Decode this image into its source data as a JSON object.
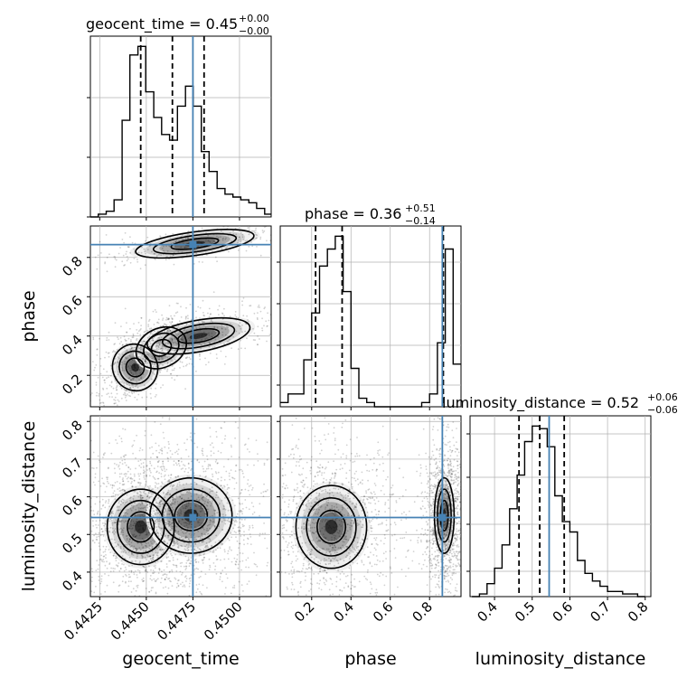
{
  "chart_data": {
    "type": "corner",
    "parameters": [
      "geocent_time",
      "phase",
      "luminosity_distance"
    ],
    "titles": [
      {
        "param": "geocent_time",
        "prefix": "geocent_time = ",
        "median": "0.45",
        "plus": "+0.00",
        "minus": "−0.00"
      },
      {
        "param": "phase",
        "prefix": "phase = ",
        "median": "0.36",
        "plus": "+0.51",
        "minus": "−0.14"
      },
      {
        "param": "luminosity_distance",
        "prefix": "luminosity_distance = ",
        "median": "0.52",
        "plus": "+0.06",
        "minus": "−0.06"
      }
    ],
    "truths": {
      "geocent_time": 0.4475,
      "phase": 0.865,
      "luminosity_distance": 0.545
    },
    "ranges": {
      "geocent_time": [
        0.442,
        0.4517
      ],
      "phase": [
        0.04,
        0.96
      ],
      "luminosity_distance": [
        0.335,
        0.815
      ]
    },
    "quantiles": {
      "geocent_time": [
        0.4447,
        0.4464,
        0.4481
      ],
      "phase": [
        0.22,
        0.355,
        0.87
      ],
      "luminosity_distance": [
        0.465,
        0.52,
        0.585
      ]
    },
    "ticks": {
      "geocent_time": {
        "values": [
          0.4425,
          0.445,
          0.4475,
          0.45
        ],
        "labels": [
          "0.4425",
          "0.4450",
          "0.4475",
          "0.4500"
        ]
      },
      "phase_x": {
        "values": [
          0.2,
          0.4,
          0.6,
          0.8
        ],
        "labels": [
          "0.2",
          "0.4",
          "0.6",
          "0.8"
        ]
      },
      "phase_y": {
        "values": [
          0.2,
          0.4,
          0.6,
          0.8
        ],
        "labels": [
          "0.2",
          "0.4",
          "0.6",
          "0.8"
        ]
      },
      "luminosity_distance_x": {
        "values": [
          0.4,
          0.5,
          0.6,
          0.7,
          0.8
        ],
        "labels": [
          "0.4",
          "0.5",
          "0.6",
          "0.7",
          "0.8"
        ]
      },
      "luminosity_distance_y": {
        "values": [
          0.4,
          0.5,
          0.6,
          0.7,
          0.8
        ],
        "labels": [
          "0.4",
          "0.5",
          "0.6",
          "0.7",
          "0.8"
        ]
      }
    },
    "histograms": {
      "geocent_time": {
        "bin_edges": [
          0.442,
          0.44242,
          0.44285,
          0.44327,
          0.4437,
          0.44412,
          0.44455,
          0.44497,
          0.4454,
          0.44582,
          0.44625,
          0.44667,
          0.4471,
          0.44752,
          0.44795,
          0.44837,
          0.4488,
          0.44922,
          0.44965,
          0.45007,
          0.4505,
          0.45092,
          0.45135,
          0.4517
        ],
        "counts": [
          0,
          1,
          2,
          6,
          34,
          57,
          60,
          44,
          35,
          29,
          27,
          39,
          46,
          39,
          23,
          16,
          10,
          8,
          7,
          6,
          5,
          3,
          1
        ]
      },
      "phase": {
        "bin_edges": [
          0.04,
          0.08,
          0.12,
          0.16,
          0.2,
          0.24,
          0.28,
          0.32,
          0.36,
          0.4,
          0.44,
          0.48,
          0.52,
          0.56,
          0.6,
          0.64,
          0.68,
          0.72,
          0.76,
          0.8,
          0.84,
          0.88,
          0.92,
          0.96
        ],
        "counts": [
          1,
          3,
          3,
          11,
          22,
          33,
          37,
          40,
          27,
          9,
          2,
          1,
          0,
          0,
          0,
          0,
          0,
          0,
          1,
          3,
          15,
          37,
          10
        ]
      },
      "luminosity_distance": {
        "bin_edges": [
          0.34,
          0.36,
          0.38,
          0.4,
          0.42,
          0.44,
          0.46,
          0.48,
          0.5,
          0.52,
          0.54,
          0.56,
          0.58,
          0.6,
          0.62,
          0.64,
          0.66,
          0.68,
          0.7,
          0.72,
          0.74,
          0.76,
          0.78,
          0.8
        ],
        "counts": [
          0,
          1,
          5,
          11,
          20,
          34,
          47,
          60,
          66,
          65,
          58,
          39,
          29,
          25,
          14,
          9,
          6,
          4,
          2,
          2,
          1,
          1,
          0
        ]
      }
    },
    "clusters_2d": {
      "phase_vs_geocent_time": [
        {
          "cx": 0.4444,
          "cy": 0.24,
          "sx": 0.0006,
          "sy": 0.06,
          "rho": 0.55
        },
        {
          "cx": 0.4458,
          "cy": 0.34,
          "sx": 0.0007,
          "sy": 0.05,
          "rho": 0.6
        },
        {
          "cx": 0.4478,
          "cy": 0.4,
          "sx": 0.0014,
          "sy": 0.04,
          "rho": 0.6
        },
        {
          "cx": 0.4476,
          "cy": 0.87,
          "sx": 0.0016,
          "sy": 0.03,
          "rho": 0.7
        }
      ],
      "luminosity_distance_vs_geocent_time": [
        {
          "cx": 0.4447,
          "cy": 0.52,
          "sx": 0.0009,
          "sy": 0.05,
          "rho": 0.0
        },
        {
          "cx": 0.4474,
          "cy": 0.55,
          "sx": 0.0011,
          "sy": 0.05,
          "rho": 0.0
        }
      ],
      "luminosity_distance_vs_phase": [
        {
          "cx": 0.3,
          "cy": 0.52,
          "sx": 0.09,
          "sy": 0.055,
          "rho": 0.0
        },
        {
          "cx": 0.875,
          "cy": 0.55,
          "sx": 0.025,
          "sy": 0.05,
          "rho": 0.0
        }
      ]
    },
    "colors": {
      "truth": "#4682b4",
      "hist": "#000000",
      "grid": "#b0b0b0",
      "quantile": "#000000"
    },
    "grid": true
  }
}
